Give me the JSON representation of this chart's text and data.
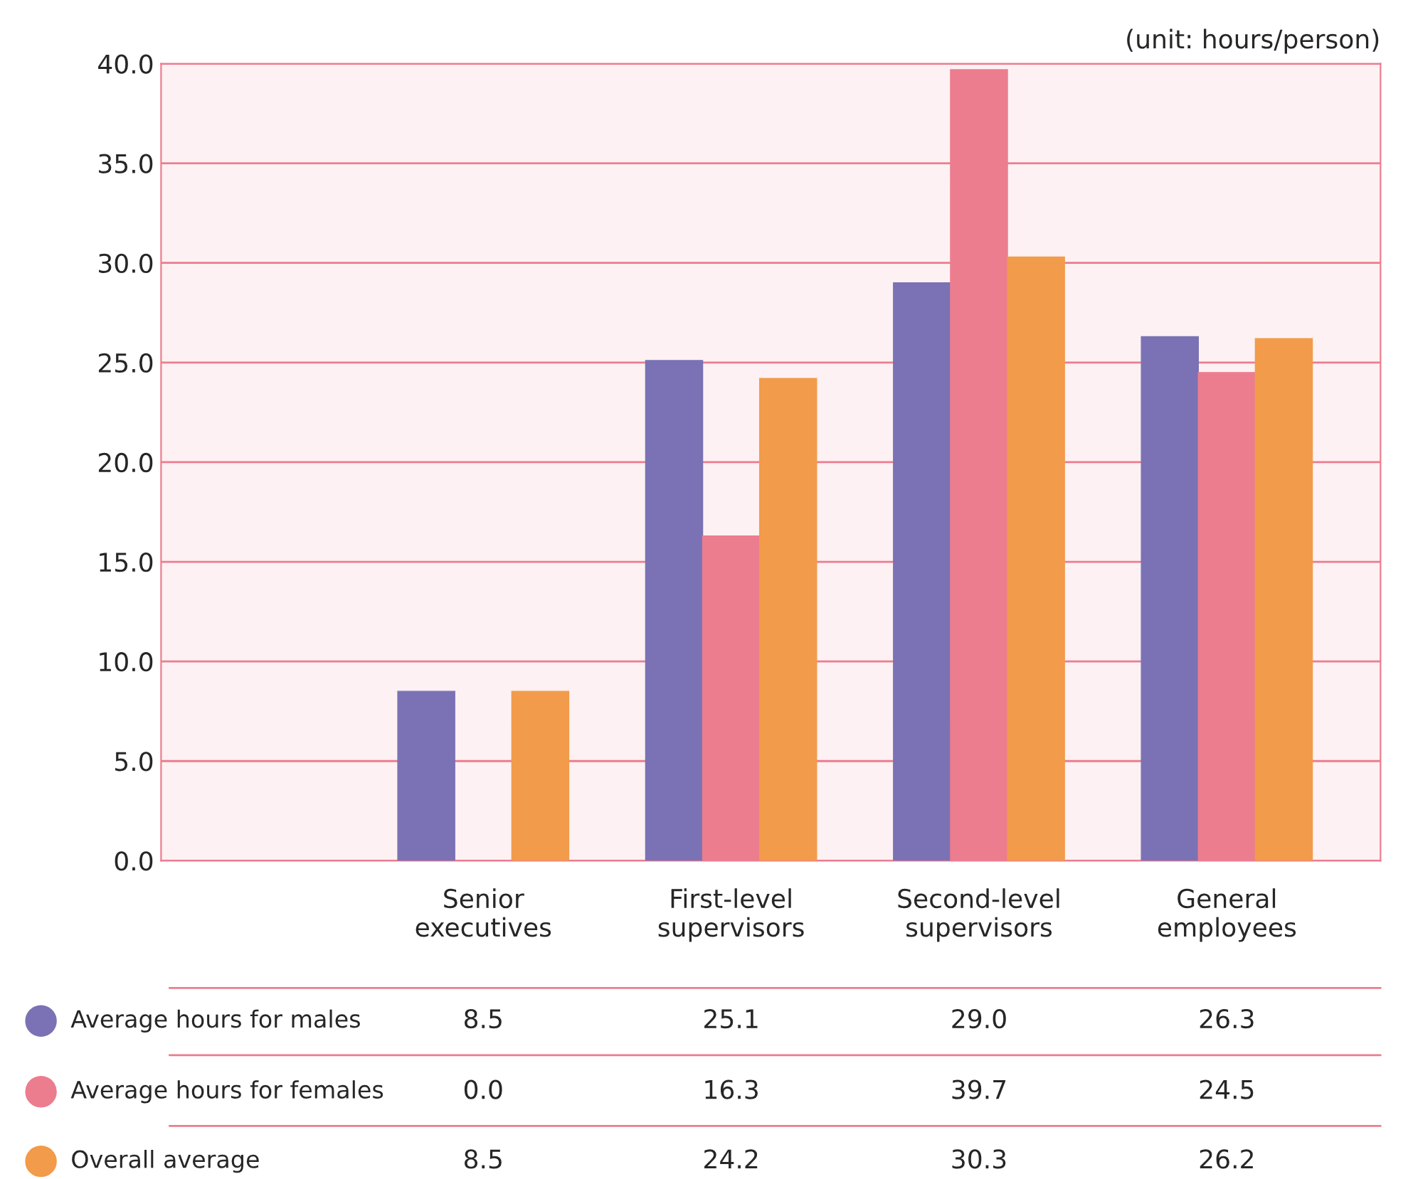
{
  "chart_data": {
    "type": "bar",
    "categories": [
      "Senior\nexecutives",
      "First-level\nsupervisors",
      "Second-level\nsupervisors",
      "General\nemployees"
    ],
    "series": [
      {
        "name": "Average hours for males",
        "color": "#7a72b4",
        "values": [
          8.5,
          25.1,
          29.0,
          26.3
        ],
        "value_labels": [
          "8.5",
          "25.1",
          "29.0",
          "26.3"
        ]
      },
      {
        "name": "Average hours for females",
        "color": "#ec7d8f",
        "values": [
          0.0,
          16.3,
          39.7,
          24.5
        ],
        "value_labels": [
          "0.0",
          "16.3",
          "39.7",
          "24.5"
        ]
      },
      {
        "name": "Overall average",
        "color": "#f29b4a",
        "values": [
          8.5,
          24.2,
          30.3,
          26.2
        ],
        "value_labels": [
          "8.5",
          "24.2",
          "30.3",
          "26.2"
        ]
      }
    ],
    "ylim": [
      0,
      40
    ],
    "yticks": [
      {
        "value": 0,
        "label": "0.0"
      },
      {
        "value": 5,
        "label": "5.0"
      },
      {
        "value": 10,
        "label": "10.0"
      },
      {
        "value": 15,
        "label": "15.0"
      },
      {
        "value": 20,
        "label": "20.0"
      },
      {
        "value": 25,
        "label": "25.0"
      },
      {
        "value": 30,
        "label": "30.0"
      },
      {
        "value": 35,
        "label": "35.0"
      },
      {
        "value": 40,
        "label": "40.0"
      }
    ],
    "grid": "y",
    "legend": "bottom",
    "annotations": [
      "(unit: hours/person)"
    ]
  }
}
